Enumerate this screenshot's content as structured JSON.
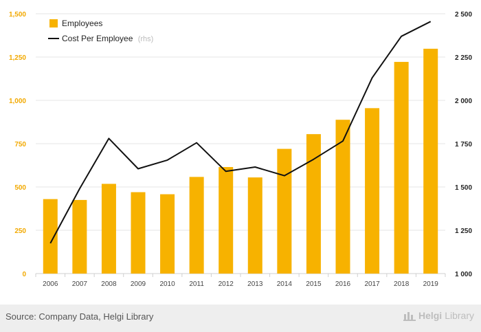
{
  "chart_data": {
    "type": "bar+line",
    "categories": [
      "2006",
      "2007",
      "2008",
      "2009",
      "2010",
      "2011",
      "2012",
      "2013",
      "2014",
      "2015",
      "2016",
      "2017",
      "2018",
      "2019"
    ],
    "series": [
      {
        "name": "Employees",
        "type": "bar",
        "axis": "left",
        "color": "#f7b200",
        "values": [
          430,
          425,
          518,
          470,
          458,
          558,
          615,
          555,
          720,
          805,
          888,
          955,
          1222,
          1298
        ]
      },
      {
        "name": "Cost Per Employee",
        "note": "(rhs)",
        "type": "line",
        "axis": "right",
        "color": "#111111",
        "values": [
          1175,
          1490,
          1780,
          1605,
          1655,
          1755,
          1590,
          1615,
          1565,
          1660,
          1765,
          2130,
          2370,
          2455
        ]
      }
    ],
    "y_left": {
      "min": 0,
      "max": 1500,
      "ticks": [
        0,
        250,
        500,
        750,
        1000,
        1250,
        1500
      ],
      "tick_labels": [
        "0",
        "250",
        "500",
        "750",
        "1,000",
        "1,250",
        "1,500"
      ]
    },
    "y_right": {
      "min": 1000,
      "max": 2500,
      "ticks": [
        1000,
        1250,
        1500,
        1750,
        2000,
        2250,
        2500
      ],
      "tick_labels": [
        "1 000",
        "1 250",
        "1 500",
        "1 750",
        "2 000",
        "2 250",
        "2 500"
      ]
    },
    "grid": true,
    "legend": {
      "position": "top-left"
    }
  },
  "footer": {
    "source": "Source: Company Data, Helgi Library",
    "logo_a": "Helgi",
    "logo_b": "Library"
  }
}
